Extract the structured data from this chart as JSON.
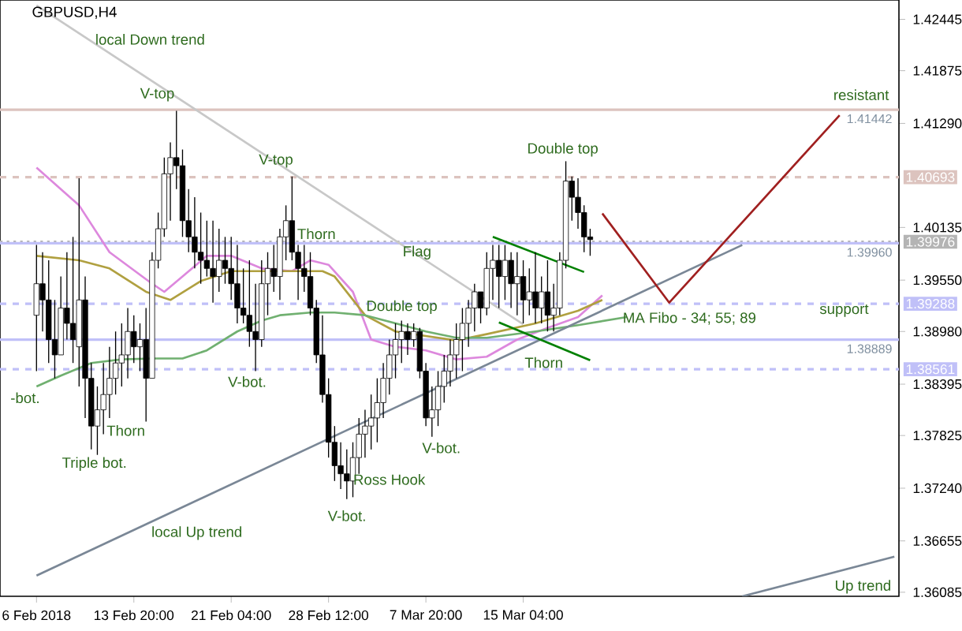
{
  "chart_data": {
    "type": "candlestick",
    "title": "GBPUSD,H4",
    "color": "#000000",
    "ylim": [
      1.3604,
      1.4266
    ],
    "categories": [
      "6 Feb 2018",
      null,
      null,
      null,
      null,
      null,
      null,
      null,
      null,
      null,
      null,
      null,
      null,
      null,
      null,
      null,
      "13 Feb 20:00",
      null,
      null,
      null,
      null,
      null,
      null,
      null,
      null,
      null,
      null,
      null,
      null,
      null,
      null,
      null,
      "21 Feb 04:00",
      null,
      null,
      null,
      null,
      null,
      null,
      null,
      null,
      null,
      null,
      null,
      null,
      null,
      null,
      null,
      "28 Feb 12:00",
      null,
      null,
      null,
      null,
      null,
      null,
      null,
      null,
      null,
      null,
      null,
      null,
      null,
      null,
      null,
      "7 Mar 20:00",
      null,
      null,
      null,
      null,
      null,
      null,
      null,
      null,
      null,
      null,
      null,
      null,
      null,
      null,
      null,
      "15 Mar 04:00",
      null,
      null,
      null,
      null,
      null,
      null,
      null,
      null,
      null,
      null,
      null,
      null,
      null,
      null,
      null,
      null,
      null,
      null,
      null,
      null,
      null,
      null,
      null,
      null,
      null,
      null,
      null,
      null,
      null,
      null,
      null,
      null,
      null,
      null,
      null,
      null,
      null,
      null,
      null,
      null,
      null,
      null,
      null,
      null,
      null,
      null,
      null,
      null,
      null,
      null,
      null,
      null,
      null,
      null,
      null,
      null,
      null,
      null,
      null,
      null,
      null
    ],
    "yticks": [
      1.42445,
      1.41875,
      {
        "value": 1.4129,
        "label": "1.41290"
      },
      1.40135,
      {
        "value": 1.3955,
        "label": "1.39550"
      },
      {
        "value": 1.3898,
        "label": "1.38980"
      },
      1.38395,
      1.37825,
      {
        "value": 1.3724,
        "label": "1.37240"
      },
      1.36655,
      1.36085
    ],
    "ohlc": [
      [
        1.3916,
        1.3994,
        1.3854,
        1.3951
      ],
      [
        1.3951,
        1.3986,
        1.3898,
        1.3933
      ],
      [
        1.3933,
        1.3977,
        1.3863,
        1.3889
      ],
      [
        1.3889,
        1.3933,
        1.3846,
        1.3872
      ],
      [
        1.3872,
        1.3959,
        1.3872,
        1.3924
      ],
      [
        1.3924,
        1.3986,
        1.3889,
        1.3907
      ],
      [
        1.3907,
        1.4003,
        1.3863,
        1.3889
      ],
      [
        1.3881,
        1.4068,
        1.3837,
        1.3933
      ],
      [
        1.3933,
        1.3959,
        1.3802,
        1.3846
      ],
      [
        1.3846,
        1.3863,
        1.3767,
        1.3793
      ],
      [
        1.3793,
        1.3837,
        1.3761,
        1.3811
      ],
      [
        1.3811,
        1.3863,
        1.3784,
        1.3828
      ],
      [
        1.3828,
        1.3881,
        1.3802,
        1.3846
      ],
      [
        1.3846,
        1.3898,
        1.3828,
        1.3863
      ],
      [
        1.3863,
        1.3907,
        1.3837,
        1.3872
      ],
      [
        1.3872,
        1.3924,
        1.3846,
        1.3898
      ],
      [
        1.3898,
        1.3916,
        1.3863,
        1.3881
      ],
      [
        1.3881,
        1.3907,
        1.3854,
        1.3889
      ],
      [
        1.3889,
        1.3924,
        1.3798,
        1.3846
      ],
      [
        1.3846,
        1.3986,
        1.3846,
        1.3977
      ],
      [
        1.3977,
        1.403,
        1.3968,
        1.4012
      ],
      [
        1.4012,
        1.4091,
        1.4003,
        1.4073
      ],
      [
        1.4073,
        1.4108,
        1.4021,
        1.4091
      ],
      [
        1.4091,
        1.4143,
        1.4056,
        1.4082
      ],
      [
        1.4082,
        1.41,
        1.4003,
        1.4021
      ],
      [
        1.4021,
        1.4056,
        1.3986,
        1.4003
      ],
      [
        1.4003,
        1.4047,
        1.3968,
        1.3986
      ],
      [
        1.3986,
        1.403,
        1.3951,
        1.3977
      ],
      [
        1.3977,
        1.4021,
        1.3959,
        1.3968
      ],
      [
        1.3968,
        1.4021,
        1.393,
        1.3959
      ],
      [
        1.3959,
        1.4012,
        1.3942,
        1.3977
      ],
      [
        1.3977,
        1.4003,
        1.3951,
        1.3968
      ],
      [
        1.3968,
        1.4003,
        1.3933,
        1.3951
      ],
      [
        1.3951,
        1.3994,
        1.3907,
        1.3924
      ],
      [
        1.3924,
        1.3968,
        1.3907,
        1.3916
      ],
      [
        1.3916,
        1.3977,
        1.3881,
        1.3898
      ],
      [
        1.3898,
        1.3951,
        1.3854,
        1.3889
      ],
      [
        1.3889,
        1.3977,
        1.3881,
        1.3951
      ],
      [
        1.3951,
        1.3986,
        1.3916,
        1.3968
      ],
      [
        1.3968,
        1.3994,
        1.3942,
        1.3959
      ],
      [
        1.3959,
        1.4012,
        1.3933,
        1.4003
      ],
      [
        1.4003,
        1.4038,
        1.3977,
        1.4021
      ],
      [
        1.4021,
        1.407,
        1.3977,
        1.3986
      ],
      [
        1.3986,
        1.3994,
        1.3933,
        1.3968
      ],
      [
        1.3968,
        1.3994,
        1.3942,
        1.3959
      ],
      [
        1.3959,
        1.3986,
        1.3916,
        1.3924
      ],
      [
        1.3924,
        1.3933,
        1.3863,
        1.3872
      ],
      [
        1.3872,
        1.3916,
        1.3819,
        1.3828
      ],
      [
        1.3828,
        1.3846,
        1.3758,
        1.3775
      ],
      [
        1.3775,
        1.3793,
        1.3732,
        1.3749
      ],
      [
        1.3749,
        1.3775,
        1.3723,
        1.374
      ],
      [
        1.374,
        1.3767,
        1.3712,
        1.3732
      ],
      [
        1.3732,
        1.3775,
        1.3714,
        1.3758
      ],
      [
        1.3758,
        1.3802,
        1.374,
        1.3784
      ],
      [
        1.3784,
        1.3811,
        1.3758,
        1.3793
      ],
      [
        1.3793,
        1.3828,
        1.3767,
        1.3802
      ],
      [
        1.3802,
        1.3846,
        1.3775,
        1.3819
      ],
      [
        1.3819,
        1.3863,
        1.3802,
        1.3846
      ],
      [
        1.3846,
        1.3889,
        1.3828,
        1.3872
      ],
      [
        1.3872,
        1.3907,
        1.3846,
        1.3889
      ],
      [
        1.3889,
        1.391,
        1.3863,
        1.3898
      ],
      [
        1.3898,
        1.3907,
        1.3872,
        1.3889
      ],
      [
        1.3889,
        1.3907,
        1.3881,
        1.3898
      ],
      [
        1.3898,
        1.3902,
        1.3846,
        1.3854
      ],
      [
        1.3854,
        1.3863,
        1.3793,
        1.3802
      ],
      [
        1.3802,
        1.3837,
        1.3781,
        1.3811
      ],
      [
        1.3811,
        1.3854,
        1.3793,
        1.3837
      ],
      [
        1.3837,
        1.3872,
        1.3819,
        1.3854
      ],
      [
        1.3854,
        1.3889,
        1.3837,
        1.3872
      ],
      [
        1.3872,
        1.3907,
        1.3846,
        1.3889
      ],
      [
        1.3889,
        1.3924,
        1.3854,
        1.3907
      ],
      [
        1.3907,
        1.3933,
        1.3881,
        1.3924
      ],
      [
        1.3924,
        1.3951,
        1.3898,
        1.3942
      ],
      [
        1.3942,
        1.3942,
        1.3907,
        1.3924
      ],
      [
        1.3924,
        1.3986,
        1.3916,
        1.3968
      ],
      [
        1.3968,
        1.3994,
        1.3933,
        1.3977
      ],
      [
        1.3977,
        1.3994,
        1.3924,
        1.3959
      ],
      [
        1.3959,
        1.3994,
        1.3933,
        1.3977
      ],
      [
        1.3977,
        1.3986,
        1.3924,
        1.3951
      ],
      [
        1.3951,
        1.3986,
        1.3916,
        1.3959
      ],
      [
        1.3959,
        1.3977,
        1.3907,
        1.3933
      ],
      [
        1.3933,
        1.3968,
        1.3916,
        1.3942
      ],
      [
        1.3942,
        1.3986,
        1.3907,
        1.3924
      ],
      [
        1.3924,
        1.3959,
        1.3907,
        1.3942
      ],
      [
        1.3942,
        1.3977,
        1.3898,
        1.3916
      ],
      [
        1.3916,
        1.3951,
        1.3898,
        1.3924
      ],
      [
        1.3924,
        1.3986,
        1.3916,
        1.3977
      ],
      [
        1.3977,
        1.4087,
        1.3968,
        1.4065
      ],
      [
        1.4065,
        1.407,
        1.4021,
        1.4047
      ],
      [
        1.4047,
        1.4068,
        1.4012,
        1.403
      ],
      [
        1.403,
        1.4038,
        1.3986,
        1.4003
      ],
      [
        1.4003,
        1.4012,
        1.3982,
        1.4
      ],
      null,
      null,
      null,
      null,
      null,
      null,
      null,
      null,
      null,
      null,
      null,
      null,
      null,
      null,
      null,
      null,
      null,
      null,
      null,
      null,
      null,
      null,
      null,
      null,
      null,
      null,
      null,
      null,
      null,
      null,
      null,
      null,
      null,
      null,
      null,
      null,
      null,
      null,
      null,
      null,
      null,
      null,
      null,
      null,
      null,
      null,
      null,
      null,
      null,
      null
    ],
    "series": [
      {
        "type": "line",
        "color": "#dd88dd",
        "values": [
          1.408,
          null,
          null,
          null,
          null,
          null,
          null,
          1.4038,
          null,
          null,
          null,
          null,
          1.3986,
          null,
          null,
          null,
          null,
          null,
          null,
          1.3951,
          null,
          1.3942,
          null,
          null,
          1.3959,
          null,
          null,
          null,
          1.3982,
          null,
          null,
          null,
          1.3982,
          null,
          null,
          null,
          null,
          1.3968,
          null,
          null,
          null,
          null,
          1.3965,
          null,
          null,
          1.3977,
          null,
          null,
          1.3972,
          null,
          null,
          null,
          1.3942,
          null,
          null,
          1.3889,
          null,
          null,
          null,
          1.3881,
          null,
          null,
          null,
          null,
          1.3877,
          null,
          null,
          null,
          null,
          1.3867,
          null,
          null,
          null,
          null,
          1.387,
          null,
          null,
          null,
          null,
          1.3889,
          null,
          null,
          null,
          null,
          1.3902,
          null,
          null,
          null,
          null,
          1.3914,
          null,
          null,
          null,
          1.3938,
          null,
          null,
          null,
          null,
          null,
          null,
          null,
          null,
          null,
          null,
          null,
          null,
          null,
          null,
          null,
          null,
          null,
          null,
          null,
          null,
          null,
          null,
          null,
          null,
          null,
          null,
          null,
          null,
          null,
          null,
          null,
          null,
          null,
          null,
          null,
          null,
          null,
          null,
          null,
          null,
          null,
          null,
          null,
          null,
          null,
          null,
          null,
          null
        ]
      },
      {
        "type": "line",
        "color": "#b0a040",
        "values": [
          1.3982,
          null,
          null,
          null,
          null,
          null,
          null,
          1.3977,
          null,
          null,
          null,
          null,
          1.3968,
          null,
          null,
          null,
          null,
          null,
          1.3942,
          null,
          null,
          null,
          1.3933,
          null,
          null,
          null,
          null,
          1.3954,
          null,
          null,
          null,
          null,
          1.3965,
          null,
          null,
          null,
          null,
          null,
          null,
          1.3965,
          null,
          null,
          null,
          null,
          null,
          null,
          null,
          1.3965,
          null,
          1.3959,
          null,
          null,
          null,
          null,
          1.3916,
          null,
          null,
          null,
          null,
          1.3898,
          null,
          null,
          null,
          null,
          1.3893,
          null,
          null,
          null,
          null,
          1.3888,
          null,
          null,
          null,
          null,
          1.3895,
          null,
          null,
          null,
          null,
          null,
          null,
          null,
          1.3907,
          null,
          null,
          null,
          null,
          null,
          null,
          1.3921,
          null,
          null,
          null,
          1.3933,
          null,
          null,
          null,
          null,
          null,
          null,
          null,
          null,
          null,
          null,
          null,
          null,
          null,
          null,
          null,
          null,
          null,
          null,
          null,
          null,
          null,
          null,
          null,
          null,
          null,
          null,
          null,
          null,
          null,
          null,
          null,
          null,
          null,
          null,
          null,
          null,
          null,
          null,
          null,
          null,
          null,
          null,
          null,
          null,
          null,
          null,
          null,
          null
        ]
      },
      {
        "type": "line",
        "color": "#70b070",
        "values": [
          1.3837,
          null,
          null,
          null,
          1.3849,
          null,
          null,
          null,
          null,
          1.3863,
          null,
          null,
          null,
          null,
          1.3867,
          null,
          null,
          null,
          null,
          1.3868,
          null,
          null,
          null,
          null,
          1.3868,
          null,
          null,
          null,
          1.3877,
          null,
          null,
          null,
          null,
          1.3898,
          null,
          null,
          null,
          1.391,
          null,
          null,
          1.3916,
          null,
          null,
          null,
          null,
          1.3919,
          null,
          null,
          null,
          1.3919,
          null,
          null,
          null,
          null,
          1.3916,
          null,
          null,
          null,
          null,
          1.3907,
          null,
          null,
          null,
          null,
          1.3898,
          null,
          null,
          null,
          null,
          1.3891,
          null,
          null,
          null,
          null,
          1.3891,
          null,
          null,
          null,
          null,
          null,
          null,
          null,
          1.3898,
          null,
          null,
          null,
          null,
          null,
          null,
          1.3905,
          null,
          null,
          null,
          null,
          null,
          null,
          null,
          1.3914,
          null,
          null,
          null,
          null,
          null,
          null,
          null,
          null,
          null,
          null,
          null,
          null,
          null,
          null,
          null,
          null,
          null,
          null,
          null,
          null,
          null,
          null,
          null,
          null,
          null,
          null,
          null,
          null,
          null,
          null,
          null,
          null,
          null,
          null,
          null,
          null,
          null,
          null,
          null,
          null,
          null,
          null,
          null,
          null
        ]
      },
      {
        "type": "line",
        "color": "#c8c8c8",
        "values": [
          1.426,
          null,
          null,
          null,
          null,
          null,
          null,
          null,
          null,
          null,
          null,
          null,
          null,
          null,
          null,
          null,
          null,
          null,
          null,
          null,
          null,
          null,
          null,
          null,
          null,
          null,
          null,
          null,
          null,
          null,
          null,
          null,
          null,
          null,
          null,
          null,
          null,
          null,
          null,
          null,
          null,
          null,
          null,
          null,
          null,
          null,
          null,
          null,
          null,
          null,
          null,
          null,
          null,
          null,
          null,
          null,
          null,
          null,
          null,
          null,
          null,
          null,
          null,
          null,
          null,
          null,
          null,
          null,
          null,
          null,
          null,
          null,
          null,
          null,
          null,
          null,
          null,
          null,
          null,
          null,
          1.3906,
          null,
          null,
          null,
          null,
          null,
          null,
          null,
          null,
          null,
          null,
          null,
          null,
          null,
          null,
          null,
          null,
          null,
          null,
          null,
          null,
          null,
          null,
          null,
          null,
          null,
          null,
          null,
          null,
          null,
          null,
          null,
          null,
          null,
          null,
          null,
          null,
          null,
          null,
          null,
          null,
          null,
          null,
          null,
          null,
          null,
          null,
          null,
          null,
          null,
          null,
          null,
          null,
          null,
          null,
          null,
          null,
          null,
          null,
          null,
          null,
          null
        ]
      },
      {
        "type": "line",
        "color": "#7a8796",
        "values": [
          1.3627,
          null,
          null,
          null,
          null,
          null,
          null,
          null,
          null,
          null,
          null,
          null,
          null,
          null,
          null,
          null,
          null,
          null,
          null,
          null,
          null,
          null,
          null,
          null,
          null,
          null,
          null,
          null,
          null,
          null,
          null,
          null,
          null,
          null,
          null,
          null,
          null,
          null,
          null,
          null,
          null,
          null,
          null,
          null,
          null,
          null,
          null,
          null,
          null,
          null,
          null,
          null,
          null,
          null,
          null,
          null,
          null,
          null,
          null,
          null,
          null,
          null,
          null,
          null,
          null,
          null,
          null,
          null,
          null,
          null,
          null,
          null,
          null,
          null,
          null,
          null,
          null,
          null,
          null,
          null,
          null,
          null,
          null,
          null,
          null,
          null,
          null,
          null,
          null,
          null,
          null,
          null,
          null,
          null,
          null,
          null,
          null,
          null,
          null,
          null,
          null,
          null,
          null,
          null,
          null,
          null,
          null,
          null,
          null,
          null,
          null,
          null,
          null,
          null,
          null,
          null,
          1.3994,
          null,
          null,
          null,
          null,
          null,
          null,
          null,
          null,
          null,
          null,
          null,
          null,
          null,
          null,
          null,
          null,
          null,
          null,
          null,
          null,
          null,
          null,
          null,
          null,
          null
        ]
      },
      {
        "type": "line",
        "color": "#7a8796",
        "values": [
          null,
          null,
          null,
          null,
          null,
          null,
          null,
          null,
          null,
          null,
          null,
          null,
          null,
          null,
          null,
          null,
          null,
          null,
          null,
          null,
          null,
          null,
          null,
          null,
          null,
          null,
          null,
          null,
          null,
          null,
          null,
          null,
          null,
          null,
          null,
          null,
          null,
          null,
          null,
          null,
          null,
          null,
          null,
          null,
          null,
          null,
          null,
          null,
          null,
          null,
          null,
          null,
          null,
          null,
          null,
          null,
          null,
          null,
          null,
          null,
          null,
          null,
          null,
          null,
          null,
          null,
          null,
          null,
          null,
          null,
          null,
          null,
          null,
          null,
          null,
          null,
          null,
          null,
          null,
          null,
          null,
          null,
          null,
          null,
          null,
          null,
          null,
          null,
          null,
          null,
          null,
          null,
          null,
          null,
          null,
          null,
          null,
          null,
          null,
          null,
          null,
          null,
          null,
          null,
          null,
          null,
          null,
          null,
          null,
          null,
          null,
          null,
          null,
          null,
          null,
          null,
          1.3604,
          null,
          null,
          null,
          null,
          null,
          null,
          null,
          null,
          null,
          null,
          null,
          null,
          null,
          null,
          null,
          null,
          null,
          null,
          null,
          null,
          null,
          null,
          null,
          null,
          1.3648
        ]
      },
      {
        "type": "line",
        "color": "#008000",
        "values": [
          null,
          null,
          null,
          null,
          null,
          null,
          null,
          null,
          null,
          null,
          null,
          null,
          null,
          null,
          null,
          null,
          null,
          null,
          null,
          null,
          null,
          null,
          null,
          null,
          null,
          null,
          null,
          null,
          null,
          null,
          null,
          null,
          null,
          null,
          null,
          null,
          null,
          null,
          null,
          null,
          null,
          null,
          null,
          null,
          null,
          null,
          null,
          null,
          null,
          null,
          null,
          null,
          null,
          null,
          null,
          null,
          null,
          null,
          null,
          null,
          null,
          null,
          null,
          null,
          null,
          null,
          null,
          null,
          null,
          null,
          null,
          null,
          null,
          null,
          null,
          1.4003,
          null,
          null,
          null,
          null,
          null,
          null,
          null,
          null,
          null,
          null,
          null,
          null,
          null,
          null,
          1.3964,
          null,
          null,
          null,
          null,
          null,
          null,
          null,
          null,
          null,
          null,
          null,
          null,
          null,
          null,
          null,
          null,
          null,
          null,
          null,
          null,
          null,
          null,
          null,
          null,
          null,
          null,
          null,
          null,
          null,
          null,
          null,
          null,
          null,
          null,
          null,
          null,
          null,
          null,
          null,
          null,
          null,
          null,
          null,
          null,
          null,
          null,
          null,
          null,
          null,
          null,
          null
        ]
      },
      {
        "type": "line",
        "color": "#008000",
        "values": [
          null,
          null,
          null,
          null,
          null,
          null,
          null,
          null,
          null,
          null,
          null,
          null,
          null,
          null,
          null,
          null,
          null,
          null,
          null,
          null,
          null,
          null,
          null,
          null,
          null,
          null,
          null,
          null,
          null,
          null,
          null,
          null,
          null,
          null,
          null,
          null,
          null,
          null,
          null,
          null,
          null,
          null,
          null,
          null,
          null,
          null,
          null,
          null,
          null,
          null,
          null,
          null,
          null,
          null,
          null,
          null,
          null,
          null,
          null,
          null,
          null,
          null,
          null,
          null,
          null,
          null,
          null,
          null,
          null,
          null,
          null,
          null,
          null,
          null,
          null,
          null,
          1.3908,
          null,
          null,
          null,
          null,
          null,
          null,
          null,
          null,
          null,
          null,
          null,
          null,
          null,
          null,
          1.3866,
          null,
          null,
          null,
          null,
          null,
          null,
          null,
          null,
          null,
          null,
          null,
          null,
          null,
          null,
          null,
          null,
          null,
          null,
          null,
          null,
          null,
          null,
          null,
          null,
          null,
          null,
          null,
          null,
          null,
          null,
          null,
          null,
          null,
          null,
          null,
          null,
          null,
          null,
          null,
          null,
          null,
          null,
          null,
          null,
          null,
          null,
          null,
          null,
          null,
          null
        ]
      },
      {
        "type": "line",
        "color": "#a02020",
        "values": [
          null,
          null,
          null,
          null,
          null,
          null,
          null,
          null,
          null,
          null,
          null,
          null,
          null,
          null,
          null,
          null,
          null,
          null,
          null,
          null,
          null,
          null,
          null,
          null,
          null,
          null,
          null,
          null,
          null,
          null,
          null,
          null,
          null,
          null,
          null,
          null,
          null,
          null,
          null,
          null,
          null,
          null,
          null,
          null,
          null,
          null,
          null,
          null,
          null,
          null,
          null,
          null,
          null,
          null,
          null,
          null,
          null,
          null,
          null,
          null,
          null,
          null,
          null,
          null,
          null,
          null,
          null,
          null,
          null,
          null,
          null,
          null,
          null,
          null,
          null,
          null,
          null,
          null,
          null,
          null,
          null,
          null,
          null,
          null,
          null,
          null,
          null,
          null,
          null,
          null,
          null,
          null,
          null,
          1.4029,
          null,
          null,
          null,
          null,
          null,
          null,
          null,
          null,
          null,
          null,
          1.393,
          null,
          null,
          null,
          null,
          null,
          null,
          null,
          null,
          null,
          null,
          null,
          null,
          null,
          null,
          null,
          null,
          null,
          null,
          null,
          null,
          null,
          null,
          null,
          null,
          null,
          null,
          null,
          1.4138,
          null,
          null,
          null,
          null,
          null,
          null,
          null,
          null,
          null
        ]
      }
    ],
    "ref_lines": [
      {
        "axis": "y",
        "value": 1.41442,
        "label": "1.41442",
        "color": "#dcc3be",
        "line_style": "solid"
      },
      {
        "axis": "y",
        "value": 1.40693,
        "label": "1.40693",
        "color": "#dcc3be",
        "line_style": "dashed"
      },
      {
        "axis": "y",
        "value": 1.39976,
        "label": "1.39976",
        "color": "#b4b4b4",
        "line_style": "dotted"
      },
      {
        "axis": "y",
        "value": 1.3996,
        "label": "1.39960",
        "color": "#c0c0f8",
        "line_style": "solid"
      },
      {
        "axis": "y",
        "value": 1.39288,
        "label": "1.39288",
        "color": "#c0c0f8",
        "line_style": "dashed"
      },
      {
        "axis": "y",
        "value": 1.38889,
        "label": "1.38889",
        "color": "#c0c0f8",
        "line_style": "solid"
      },
      {
        "axis": "y",
        "value": 1.38561,
        "label": "1.38561",
        "color": "#c0c0f8",
        "line_style": "dashed"
      }
    ],
    "annotations": [
      "local Down trend",
      "V-top",
      "V-top",
      "Thorn",
      "Triple bot.",
      "Thorn",
      "-bot.",
      "V-bot.",
      {
        "text": "Double top",
        "y": 1.391
      },
      "Ross Hook",
      "V-bot.",
      "V-bot.",
      "local  Up trend",
      {
        "text": "Flag",
        "y": 1.4003
      },
      "Double top",
      "Thorn",
      "MA Fibo - 34; 55; 89",
      "resistant",
      "support",
      "Up trend"
    ]
  }
}
